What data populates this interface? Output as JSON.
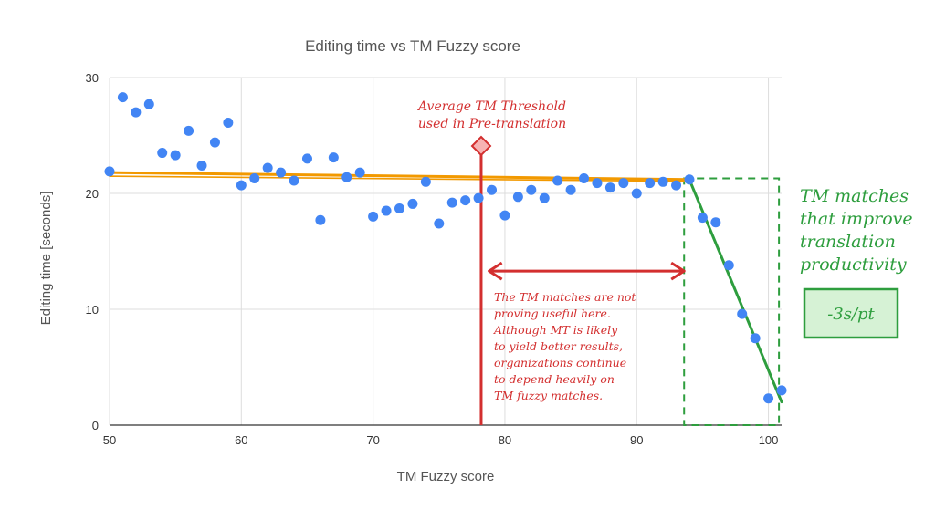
{
  "chart_data": {
    "type": "scatter",
    "title": "Editing time vs TM Fuzzy score",
    "xlabel": "TM Fuzzy score",
    "ylabel": "Editing time [seconds]",
    "xlim": [
      50,
      101
    ],
    "ylim": [
      0,
      30
    ],
    "xticks": [
      50,
      60,
      70,
      80,
      90,
      100
    ],
    "yticks": [
      0,
      10,
      20,
      30
    ],
    "grid": true,
    "points": [
      {
        "x": 50,
        "y": 21.9
      },
      {
        "x": 51,
        "y": 28.3
      },
      {
        "x": 52,
        "y": 27.0
      },
      {
        "x": 53,
        "y": 27.7
      },
      {
        "x": 54,
        "y": 23.5
      },
      {
        "x": 55,
        "y": 23.3
      },
      {
        "x": 56,
        "y": 25.4
      },
      {
        "x": 57,
        "y": 22.4
      },
      {
        "x": 58,
        "y": 24.4
      },
      {
        "x": 59,
        "y": 26.1
      },
      {
        "x": 60,
        "y": 20.7
      },
      {
        "x": 61,
        "y": 21.3
      },
      {
        "x": 62,
        "y": 22.2
      },
      {
        "x": 63,
        "y": 21.8
      },
      {
        "x": 64,
        "y": 21.1
      },
      {
        "x": 65,
        "y": 23.0
      },
      {
        "x": 66,
        "y": 17.7
      },
      {
        "x": 67,
        "y": 23.1
      },
      {
        "x": 68,
        "y": 21.4
      },
      {
        "x": 69,
        "y": 21.8
      },
      {
        "x": 70,
        "y": 18.0
      },
      {
        "x": 71,
        "y": 18.5
      },
      {
        "x": 72,
        "y": 18.7
      },
      {
        "x": 73,
        "y": 19.1
      },
      {
        "x": 74,
        "y": 21.0
      },
      {
        "x": 75,
        "y": 17.4
      },
      {
        "x": 76,
        "y": 19.2
      },
      {
        "x": 77,
        "y": 19.4
      },
      {
        "x": 78,
        "y": 19.6
      },
      {
        "x": 79,
        "y": 20.3
      },
      {
        "x": 80,
        "y": 18.1
      },
      {
        "x": 81,
        "y": 19.7
      },
      {
        "x": 82,
        "y": 20.3
      },
      {
        "x": 83,
        "y": 19.6
      },
      {
        "x": 84,
        "y": 21.1
      },
      {
        "x": 85,
        "y": 20.3
      },
      {
        "x": 86,
        "y": 21.3
      },
      {
        "x": 87,
        "y": 20.9
      },
      {
        "x": 88,
        "y": 20.5
      },
      {
        "x": 89,
        "y": 20.9
      },
      {
        "x": 90,
        "y": 20.0
      },
      {
        "x": 91,
        "y": 20.9
      },
      {
        "x": 92,
        "y": 21.0
      },
      {
        "x": 93,
        "y": 20.7
      },
      {
        "x": 94,
        "y": 21.2
      },
      {
        "x": 95,
        "y": 17.9
      },
      {
        "x": 96,
        "y": 17.5
      },
      {
        "x": 97,
        "y": 13.8
      },
      {
        "x": 98,
        "y": 9.6
      },
      {
        "x": 99,
        "y": 7.5
      },
      {
        "x": 100,
        "y": 2.3
      },
      {
        "x": 101,
        "y": 3.0
      }
    ],
    "trendline_flat": {
      "from": {
        "x": 50,
        "y": 21.8
      },
      "to": {
        "x": 94,
        "y": 21.2
      }
    },
    "trendline_steep": {
      "from": {
        "x": 94,
        "y": 21.2
      },
      "to": {
        "x": 101,
        "y": 2.0
      }
    },
    "threshold_x": 78.2,
    "range_arrow": {
      "from_x": 78.8,
      "to_x": 93.6,
      "y": 13.3
    },
    "highlight_box": {
      "x": [
        93.6,
        100.8
      ],
      "y": [
        0,
        21.3
      ]
    }
  },
  "annotations": {
    "threshold_label": [
      "Average TM Threshold",
      "used in Pre-translation"
    ],
    "range_note": [
      "The TM matches are not",
      "proving useful here.",
      "Although MT is likely",
      "to yield better results,",
      "organizations continue",
      "to depend heavily on",
      "TM fuzzy matches."
    ],
    "improve_note": [
      "TM matches",
      "that improve",
      "translation",
      "productivity"
    ],
    "badge": "-3s/pt"
  },
  "colors": {
    "points": "#4285f4",
    "trend_flat": "#f29900",
    "trend_steep": "#2e9e3e",
    "threshold": "#d32f2f",
    "grid": "#dddddd",
    "badge_fill": "#d6f2d5"
  }
}
